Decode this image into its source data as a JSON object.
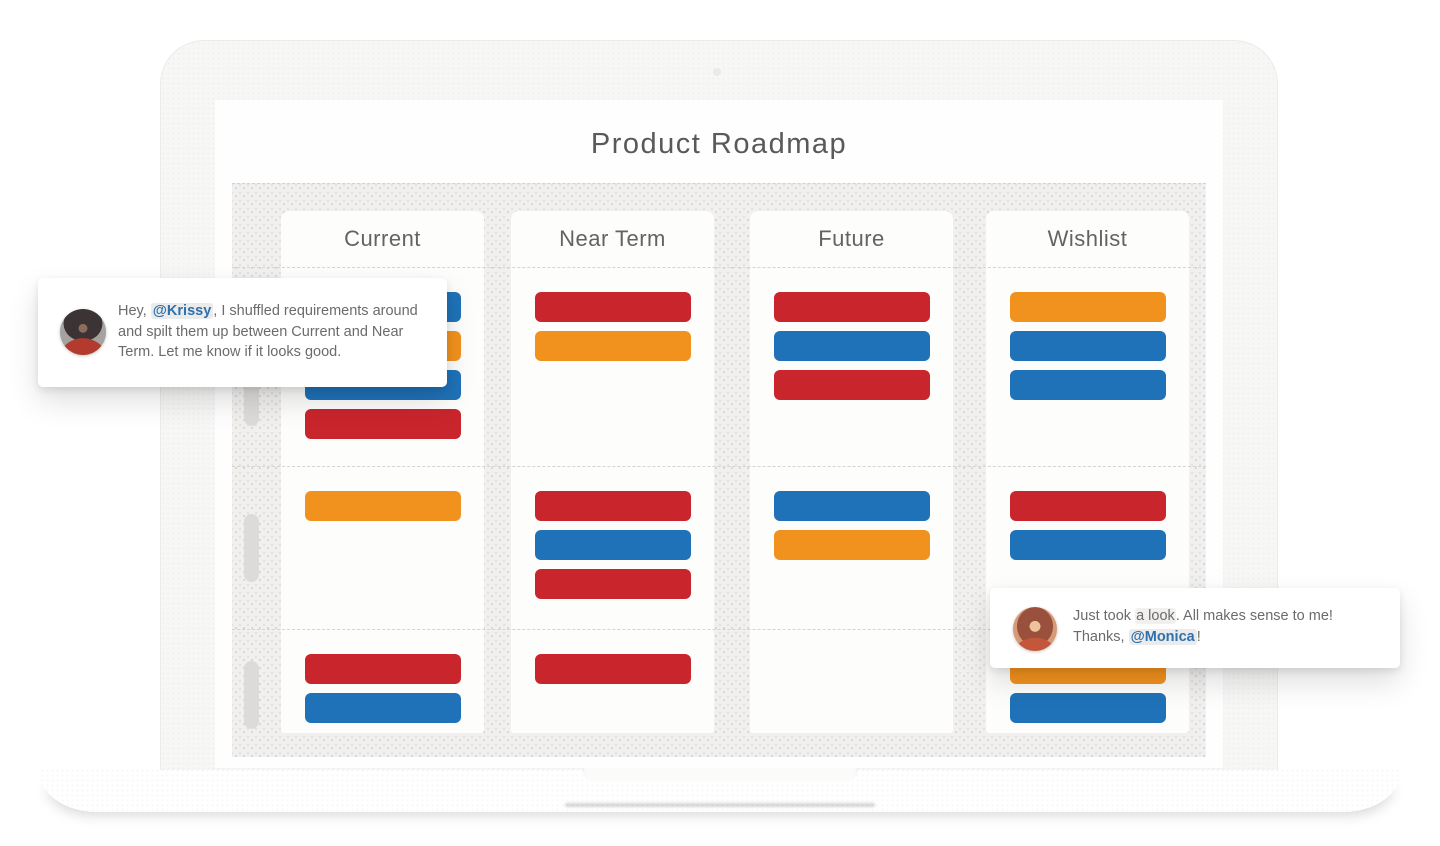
{
  "window": {
    "title": "Product Roadmap"
  },
  "board": {
    "columns": [
      {
        "id": "current",
        "label": "Current",
        "rows": [
          [
            "blue",
            "orange",
            "blue",
            "red"
          ],
          [
            "orange"
          ],
          [
            "red",
            "blue"
          ]
        ]
      },
      {
        "id": "near-term",
        "label": "Near Term",
        "rows": [
          [
            "red",
            "orange"
          ],
          [
            "red",
            "blue",
            "red"
          ],
          [
            "red"
          ]
        ]
      },
      {
        "id": "future",
        "label": "Future",
        "rows": [
          [
            "red",
            "blue",
            "red"
          ],
          [
            "blue",
            "orange"
          ],
          []
        ]
      },
      {
        "id": "wishlist",
        "label": "Wishlist",
        "rows": [
          [
            "orange",
            "blue",
            "blue"
          ],
          [
            "red",
            "blue"
          ],
          [
            "orange",
            "blue"
          ]
        ]
      }
    ],
    "colors": {
      "red": "#c9252d",
      "blue": "#1f72b8",
      "orange": "#f2921e"
    }
  },
  "comments": {
    "left": {
      "avatar": "monica-avatar",
      "pre": "Hey, ",
      "mention": "@Krissy",
      "post": ", I shuffled requirements around and spilt them up between Current and Near Term. Let me know if it looks good."
    },
    "right": {
      "avatar": "krissy-avatar",
      "pre": "Just took ",
      "highlight": "a look",
      "mid": ". All makes sense to me!",
      "line2_pre": "Thanks, ",
      "mention": "@Monica",
      "line2_post": "!"
    }
  },
  "accents": {
    "mention_color": "#2e71ac",
    "mention_bg": "#ebebeb",
    "highlight_bg": "#f1f0ee"
  }
}
